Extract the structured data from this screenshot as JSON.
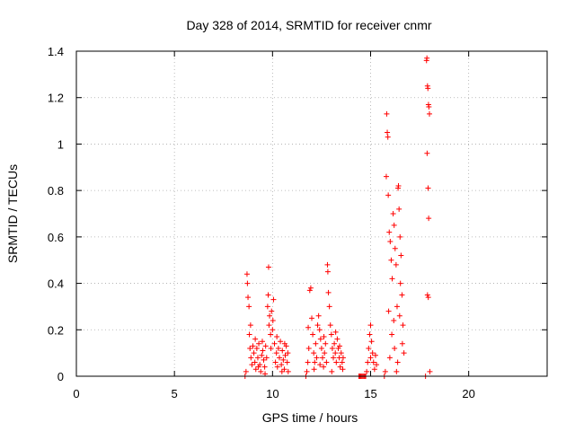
{
  "chart_data": {
    "type": "scatter",
    "title": "Day 328 of 2014, SRMTID for receiver cnmr",
    "xlabel": "GPS time / hours",
    "ylabel": "SRMTID / TECUs",
    "xlim": [
      0,
      24
    ],
    "ylim": [
      0,
      1.4
    ],
    "x_ticks": [
      "0",
      "5",
      "10",
      "15",
      "20"
    ],
    "y_ticks": [
      "0",
      "0.2",
      "0.4",
      "0.6",
      "0.8",
      "1",
      "1.2",
      "1.4"
    ],
    "grid": true,
    "marker": "plus",
    "color": "#ff0000",
    "points": [
      [
        8.6,
        0.0
      ],
      [
        8.65,
        0.02
      ],
      [
        8.7,
        0.44
      ],
      [
        8.72,
        0.4
      ],
      [
        8.75,
        0.34
      ],
      [
        8.8,
        0.3
      ],
      [
        8.82,
        0.18
      ],
      [
        8.85,
        0.12
      ],
      [
        8.9,
        0.08
      ],
      [
        8.95,
        0.05
      ],
      [
        9.0,
        0.13
      ],
      [
        9.05,
        0.1
      ],
      [
        9.1,
        0.06
      ],
      [
        9.15,
        0.03
      ],
      [
        9.2,
        0.12
      ],
      [
        9.25,
        0.08
      ],
      [
        9.3,
        0.14
      ],
      [
        9.35,
        0.05
      ],
      [
        9.4,
        0.02
      ],
      [
        9.45,
        0.09
      ],
      [
        9.5,
        0.11
      ],
      [
        9.55,
        0.07
      ],
      [
        9.6,
        0.04
      ],
      [
        9.65,
        0.13
      ],
      [
        9.7,
        0.08
      ],
      [
        9.75,
        0.3
      ],
      [
        9.78,
        0.35
      ],
      [
        9.8,
        0.47
      ],
      [
        9.82,
        0.22
      ],
      [
        9.85,
        0.26
      ],
      [
        9.9,
        0.18
      ],
      [
        9.92,
        0.12
      ],
      [
        9.95,
        0.28
      ],
      [
        10.0,
        0.2
      ],
      [
        10.05,
        0.33
      ],
      [
        10.1,
        0.14
      ],
      [
        10.15,
        0.06
      ],
      [
        10.2,
        0.1
      ],
      [
        10.25,
        0.04
      ],
      [
        10.3,
        0.12
      ],
      [
        10.35,
        0.08
      ],
      [
        10.4,
        0.15
      ],
      [
        10.45,
        0.05
      ],
      [
        10.5,
        0.11
      ],
      [
        10.55,
        0.07
      ],
      [
        10.6,
        0.03
      ],
      [
        10.65,
        0.09
      ],
      [
        10.7,
        0.13
      ],
      [
        10.75,
        0.06
      ],
      [
        10.8,
        0.02
      ],
      [
        8.88,
        0.22
      ],
      [
        9.12,
        0.16
      ],
      [
        9.28,
        0.04
      ],
      [
        9.48,
        0.15
      ],
      [
        9.62,
        0.01
      ],
      [
        10.02,
        0.24
      ],
      [
        10.22,
        0.17
      ],
      [
        10.48,
        0.02
      ],
      [
        10.62,
        0.14
      ],
      [
        10.78,
        0.1
      ],
      [
        11.7,
        0.0
      ],
      [
        11.75,
        0.02
      ],
      [
        11.8,
        0.06
      ],
      [
        11.85,
        0.12
      ],
      [
        11.9,
        0.37
      ],
      [
        11.95,
        0.38
      ],
      [
        12.0,
        0.25
      ],
      [
        12.05,
        0.18
      ],
      [
        12.1,
        0.1
      ],
      [
        12.15,
        0.06
      ],
      [
        12.2,
        0.14
      ],
      [
        12.25,
        0.08
      ],
      [
        12.3,
        0.22
      ],
      [
        12.35,
        0.26
      ],
      [
        12.4,
        0.2
      ],
      [
        12.45,
        0.16
      ],
      [
        12.5,
        0.12
      ],
      [
        12.55,
        0.08
      ],
      [
        12.6,
        0.04
      ],
      [
        12.65,
        0.1
      ],
      [
        12.7,
        0.14
      ],
      [
        12.75,
        0.06
      ],
      [
        12.8,
        0.48
      ],
      [
        12.82,
        0.45
      ],
      [
        12.85,
        0.36
      ],
      [
        12.9,
        0.3
      ],
      [
        12.95,
        0.22
      ],
      [
        13.0,
        0.18
      ],
      [
        13.05,
        0.12
      ],
      [
        13.1,
        0.08
      ],
      [
        13.15,
        0.14
      ],
      [
        13.2,
        0.1
      ],
      [
        13.25,
        0.06
      ],
      [
        13.3,
        0.16
      ],
      [
        13.35,
        0.12
      ],
      [
        13.4,
        0.08
      ],
      [
        13.45,
        0.04
      ],
      [
        13.5,
        0.1
      ],
      [
        13.55,
        0.06
      ],
      [
        13.6,
        0.08
      ],
      [
        11.82,
        0.21
      ],
      [
        12.12,
        0.03
      ],
      [
        12.42,
        0.05
      ],
      [
        12.62,
        0.17
      ],
      [
        13.02,
        0.02
      ],
      [
        13.22,
        0.19
      ],
      [
        13.42,
        0.13
      ],
      [
        13.58,
        0.03
      ],
      [
        14.4,
        0.0
      ],
      [
        14.45,
        0.0
      ],
      [
        14.5,
        0.0
      ],
      [
        14.55,
        0.0
      ],
      [
        14.6,
        0.0
      ],
      [
        14.65,
        0.0
      ],
      [
        14.7,
        0.0
      ],
      [
        14.75,
        0.0
      ],
      [
        14.8,
        0.02
      ],
      [
        14.85,
        0.06
      ],
      [
        14.9,
        0.12
      ],
      [
        14.95,
        0.18
      ],
      [
        15.0,
        0.22
      ],
      [
        15.05,
        0.15
      ],
      [
        15.1,
        0.1
      ],
      [
        15.15,
        0.06
      ],
      [
        15.2,
        0.03
      ],
      [
        15.25,
        0.09
      ],
      [
        15.3,
        0.05
      ],
      [
        15.0,
        0.08
      ],
      [
        15.7,
        0.0
      ],
      [
        15.75,
        0.02
      ],
      [
        15.8,
        0.86
      ],
      [
        15.82,
        1.13
      ],
      [
        15.85,
        1.05
      ],
      [
        15.88,
        1.03
      ],
      [
        15.9,
        0.78
      ],
      [
        15.95,
        0.62
      ],
      [
        16.0,
        0.58
      ],
      [
        16.05,
        0.5
      ],
      [
        16.1,
        0.42
      ],
      [
        16.15,
        0.7
      ],
      [
        16.2,
        0.65
      ],
      [
        16.25,
        0.55
      ],
      [
        16.3,
        0.48
      ],
      [
        16.35,
        0.3
      ],
      [
        16.4,
        0.81
      ],
      [
        16.42,
        0.82
      ],
      [
        16.45,
        0.72
      ],
      [
        16.5,
        0.6
      ],
      [
        16.55,
        0.52
      ],
      [
        16.6,
        0.35
      ],
      [
        16.65,
        0.22
      ],
      [
        16.7,
        0.1
      ],
      [
        15.92,
        0.28
      ],
      [
        16.08,
        0.18
      ],
      [
        16.22,
        0.12
      ],
      [
        16.38,
        0.06
      ],
      [
        16.48,
        0.26
      ],
      [
        16.62,
        0.14
      ],
      [
        15.98,
        0.08
      ],
      [
        16.18,
        0.24
      ],
      [
        16.32,
        0.02
      ],
      [
        16.52,
        0.4
      ],
      [
        17.8,
        0.0
      ],
      [
        17.85,
        1.36
      ],
      [
        17.87,
        1.37
      ],
      [
        17.9,
        1.25
      ],
      [
        17.92,
        1.24
      ],
      [
        17.95,
        1.17
      ],
      [
        17.97,
        1.16
      ],
      [
        18.0,
        1.13
      ],
      [
        17.88,
        0.96
      ],
      [
        17.93,
        0.81
      ],
      [
        17.96,
        0.68
      ],
      [
        17.9,
        0.35
      ],
      [
        17.94,
        0.34
      ],
      [
        18.02,
        0.02
      ]
    ]
  }
}
